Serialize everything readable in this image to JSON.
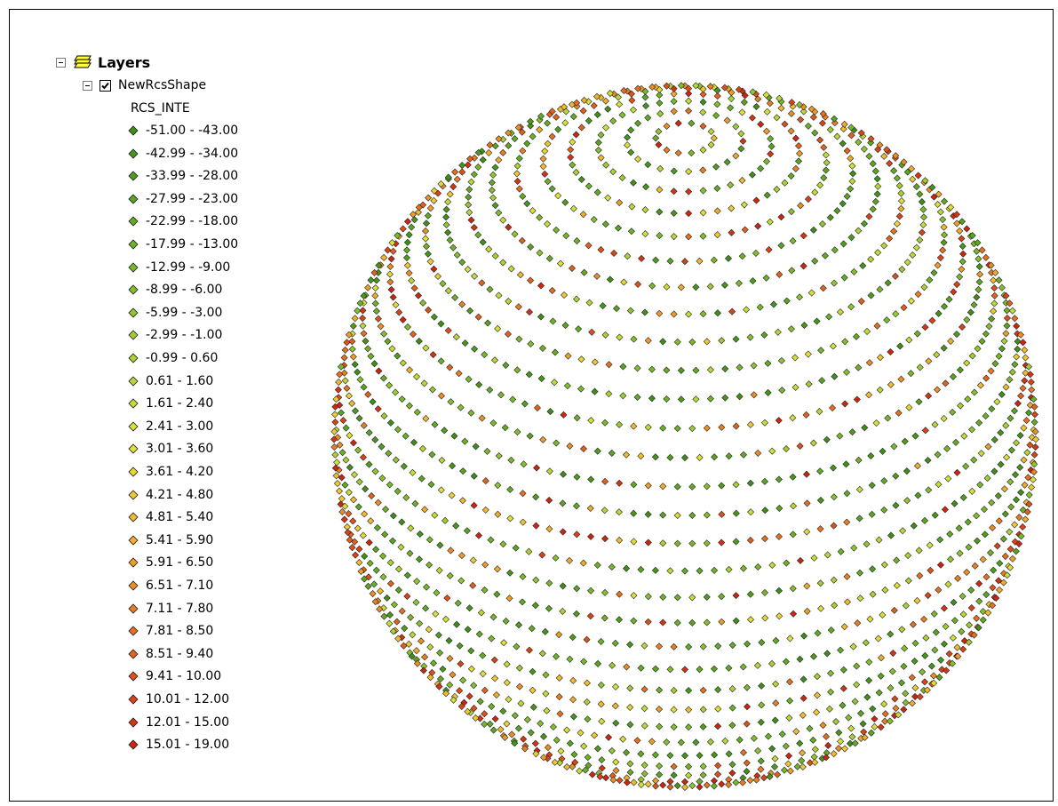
{
  "toc": {
    "root_label": "Layers",
    "root_icon": "layers-icon",
    "layer_name": "NewRcsShape",
    "layer_checked": true,
    "field_name": "RCS_INTE"
  },
  "classes": [
    {
      "label": "-51.00 - -43.00",
      "color": "#3e8f17"
    },
    {
      "label": "-42.99 - -34.00",
      "color": "#46961a"
    },
    {
      "label": "-33.99 - -28.00",
      "color": "#4f9d1d"
    },
    {
      "label": "-27.99 - -23.00",
      "color": "#59a420"
    },
    {
      "label": "-22.99 - -18.00",
      "color": "#63ab23"
    },
    {
      "label": "-17.99 - -13.00",
      "color": "#6db226"
    },
    {
      "label": "-12.99 - -9.00",
      "color": "#78b929"
    },
    {
      "label": "-8.99 - -6.00",
      "color": "#84c02c"
    },
    {
      "label": "-5.99 - -3.00",
      "color": "#90c62f"
    },
    {
      "label": "-2.99 - -1.00",
      "color": "#9dcd31"
    },
    {
      "label": "-0.99 - 0.60",
      "color": "#aad233"
    },
    {
      "label": "0.61 - 1.60",
      "color": "#b8d835"
    },
    {
      "label": "1.61 - 2.40",
      "color": "#c6dd36"
    },
    {
      "label": "2.41 - 3.00",
      "color": "#d4e137"
    },
    {
      "label": "3.01 - 3.60",
      "color": "#e0e036"
    },
    {
      "label": "3.61 - 4.20",
      "color": "#e8d634"
    },
    {
      "label": "4.21 - 4.80",
      "color": "#eec931"
    },
    {
      "label": "4.81 - 5.40",
      "color": "#f0bb2e"
    },
    {
      "label": "5.41 - 5.90",
      "color": "#f0ac2b"
    },
    {
      "label": "5.91 - 6.50",
      "color": "#ef9d28"
    },
    {
      "label": "6.51 - 7.10",
      "color": "#ed8e25"
    },
    {
      "label": "7.11 - 7.80",
      "color": "#ea7f22"
    },
    {
      "label": "7.81 - 8.50",
      "color": "#e6701f"
    },
    {
      "label": "8.51 - 9.40",
      "color": "#e2611c"
    },
    {
      "label": "9.41 - 10.00",
      "color": "#de5219"
    },
    {
      "label": "10.01 - 12.00",
      "color": "#d94316"
    },
    {
      "label": "12.01 - 15.00",
      "color": "#d43413"
    },
    {
      "label": "15.01 - 19.00",
      "color": "#cf2510"
    }
  ]
}
